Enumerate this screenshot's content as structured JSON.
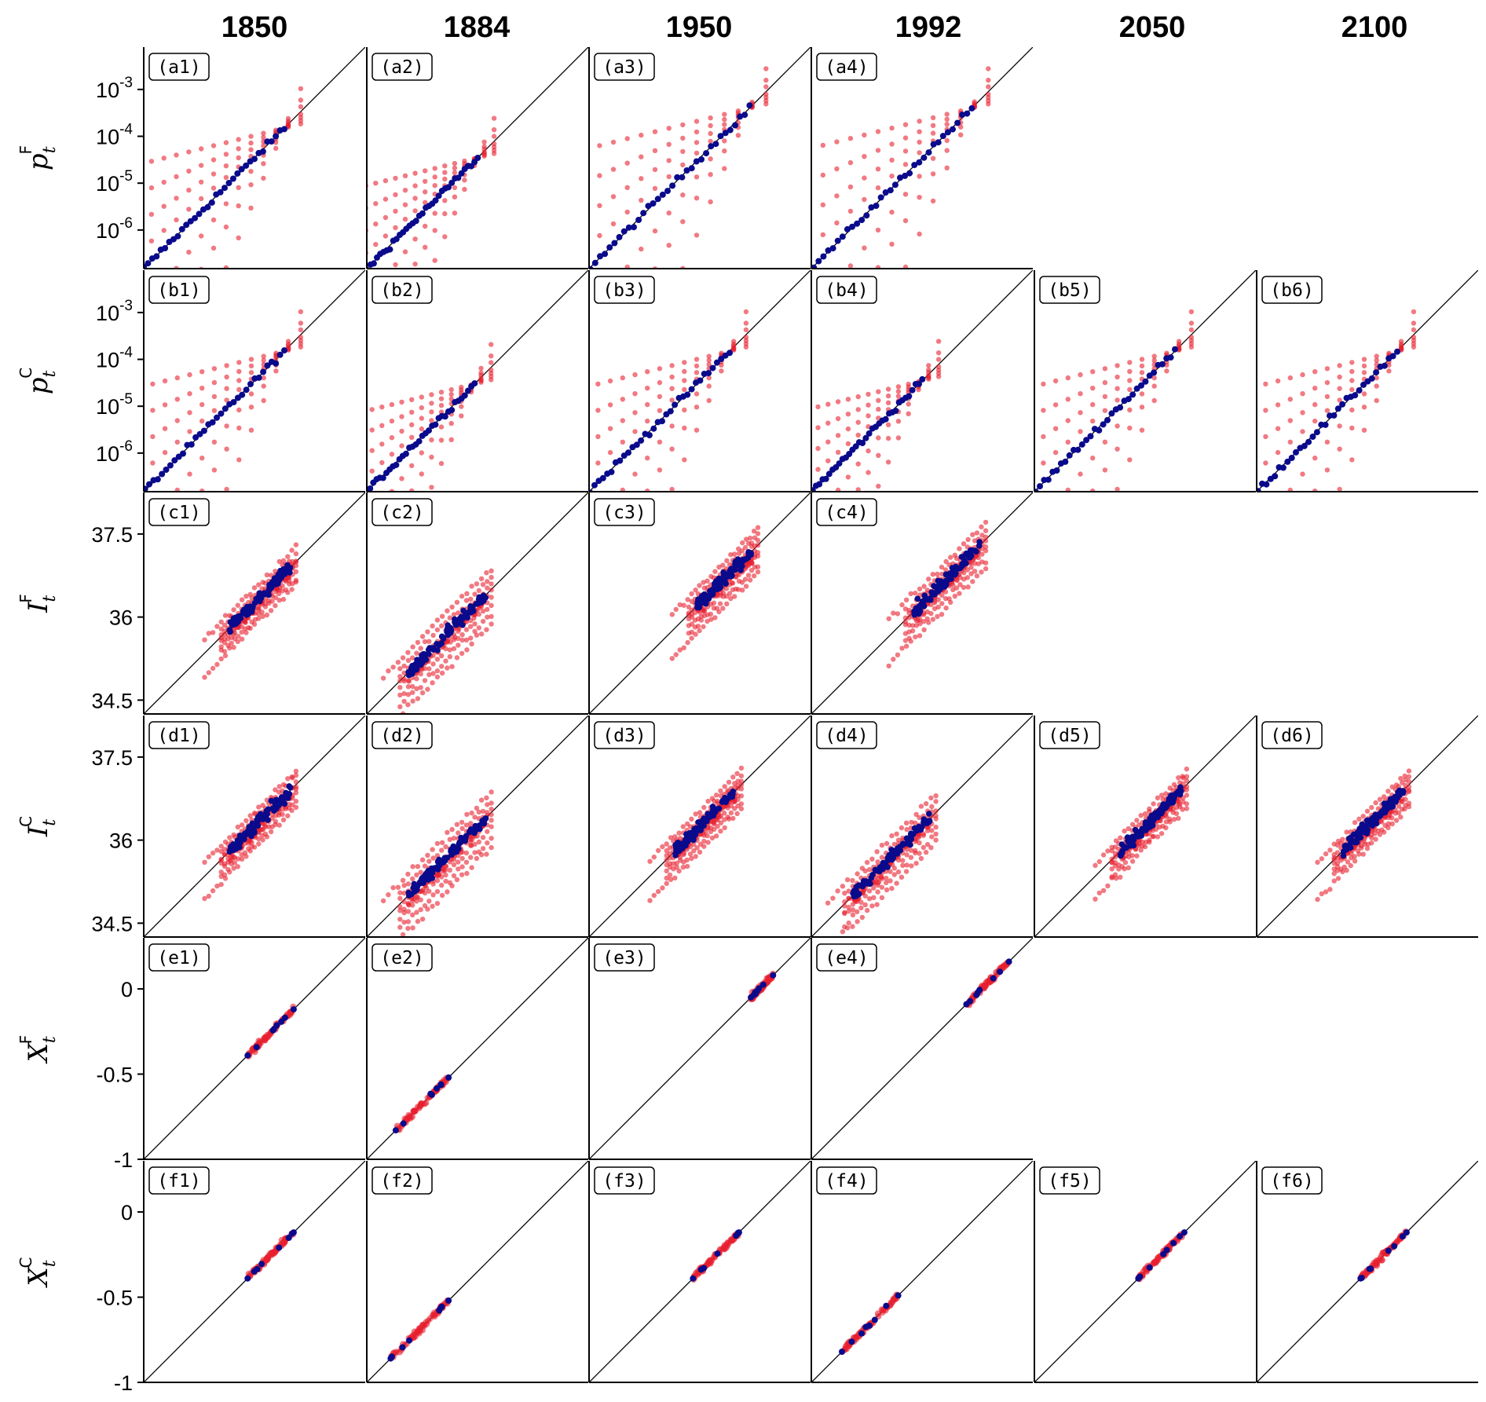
{
  "column_titles": [
    "1850",
    "1884",
    "1950",
    "1992",
    "2050",
    "2100"
  ],
  "rows": [
    {
      "id": "a",
      "ylabel": {
        "base": "p",
        "sub": "t",
        "sup": "F"
      }
    },
    {
      "id": "b",
      "ylabel": {
        "base": "p",
        "sub": "t",
        "sup": "C"
      }
    },
    {
      "id": "c",
      "ylabel": {
        "base": "I",
        "sub": "t",
        "sup": "F"
      }
    },
    {
      "id": "d",
      "ylabel": {
        "base": "I",
        "sub": "t",
        "sup": "C"
      }
    },
    {
      "id": "e",
      "ylabel": {
        "base": "X",
        "sub": "t",
        "sup": "F"
      }
    },
    {
      "id": "f",
      "ylabel": {
        "base": "X",
        "sub": "t",
        "sup": "C"
      }
    }
  ],
  "chart_data": {
    "type": "scatter",
    "layout": "6x6 small multiples; diagonal reference line y = x in each panel",
    "series_colors": {
      "blue": "#0a0a8c",
      "red": "#e8202e"
    },
    "rows": [
      {
        "id": "a",
        "scale": "log",
        "ylim": [
          1.5e-07,
          0.008
        ],
        "yticks": [
          {
            "base": "10",
            "exp": "-3"
          },
          {
            "base": "10",
            "exp": "-4"
          },
          {
            "base": "10",
            "exp": "-5"
          },
          {
            "base": "10",
            "exp": "-6"
          }
        ],
        "ytick_values": [
          0.001,
          0.0001,
          1e-05,
          1e-06
        ]
      },
      {
        "id": "b",
        "scale": "log",
        "ylim": [
          1.5e-07,
          0.008
        ],
        "yticks": [
          {
            "base": "10",
            "exp": "-3"
          },
          {
            "base": "10",
            "exp": "-4"
          },
          {
            "base": "10",
            "exp": "-5"
          },
          {
            "base": "10",
            "exp": "-6"
          }
        ],
        "ytick_values": [
          0.001,
          0.0001,
          1e-05,
          1e-06
        ]
      },
      {
        "id": "c",
        "scale": "linear",
        "ylim": [
          34.25,
          38.25
        ],
        "yticks": [
          "37.5",
          "36",
          "34.5"
        ],
        "ytick_values": [
          37.5,
          36,
          34.5
        ]
      },
      {
        "id": "d",
        "scale": "linear",
        "ylim": [
          34.25,
          38.25
        ],
        "yticks": [
          "37.5",
          "36",
          "34.5"
        ],
        "ytick_values": [
          37.5,
          36,
          34.5
        ]
      },
      {
        "id": "e",
        "scale": "linear",
        "ylim": [
          -1,
          0.3
        ],
        "yticks": [
          "0",
          "-0.5",
          "-1"
        ],
        "ytick_values": [
          0,
          -0.5,
          -1
        ]
      },
      {
        "id": "f",
        "scale": "linear",
        "ylim": [
          -1,
          0.3
        ],
        "yticks": [
          "0",
          "-0.5",
          "-1"
        ],
        "ytick_values": [
          0,
          -0.5,
          -1
        ]
      }
    ],
    "panels": [
      {
        "tag": "(a1)",
        "row": 0,
        "col": 0,
        "kind": "fan",
        "x0": 1.5e-07,
        "x1": 0.00015
      },
      {
        "tag": "(a2)",
        "row": 0,
        "col": 1,
        "kind": "fan",
        "x0": 1.8e-07,
        "x1": 3.5e-05
      },
      {
        "tag": "(a3)",
        "row": 0,
        "col": 2,
        "kind": "fan",
        "x0": 1.6e-07,
        "x1": 0.0004
      },
      {
        "tag": "(a4)",
        "row": 0,
        "col": 3,
        "kind": "fan",
        "x0": 1.7e-07,
        "x1": 0.0004
      },
      {
        "tag": "(b1)",
        "row": 1,
        "col": 0,
        "kind": "fan",
        "x0": 1.6e-07,
        "x1": 0.00015
      },
      {
        "tag": "(b2)",
        "row": 1,
        "col": 1,
        "kind": "fan",
        "x0": 1.5e-07,
        "x1": 3e-05
      },
      {
        "tag": "(b3)",
        "row": 1,
        "col": 2,
        "kind": "fan",
        "x0": 1.6e-07,
        "x1": 0.00015
      },
      {
        "tag": "(b4)",
        "row": 1,
        "col": 3,
        "kind": "fan",
        "x0": 1.6e-07,
        "x1": 3.5e-05
      },
      {
        "tag": "(b5)",
        "row": 1,
        "col": 4,
        "kind": "fan",
        "x0": 1.6e-07,
        "x1": 0.00015
      },
      {
        "tag": "(b6)",
        "row": 1,
        "col": 5,
        "kind": "fan",
        "x0": 1.6e-07,
        "x1": 0.00015
      },
      {
        "tag": "(c1)",
        "row": 2,
        "col": 0,
        "kind": "band",
        "x0": 35.8,
        "x1": 36.9,
        "spread": 0.45
      },
      {
        "tag": "(c2)",
        "row": 2,
        "col": 1,
        "kind": "band",
        "x0": 35.0,
        "x1": 36.4,
        "spread": 0.7
      },
      {
        "tag": "(c3)",
        "row": 2,
        "col": 2,
        "kind": "band",
        "x0": 36.2,
        "x1": 37.2,
        "spread": 0.55
      },
      {
        "tag": "(c4)",
        "row": 2,
        "col": 3,
        "kind": "band",
        "x0": 36.1,
        "x1": 37.3,
        "spread": 0.55
      },
      {
        "tag": "(d1)",
        "row": 3,
        "col": 0,
        "kind": "band",
        "x0": 35.8,
        "x1": 36.9,
        "spread": 0.45
      },
      {
        "tag": "(d2)",
        "row": 3,
        "col": 1,
        "kind": "band",
        "x0": 35.0,
        "x1": 36.4,
        "spread": 0.7
      },
      {
        "tag": "(d3)",
        "row": 3,
        "col": 2,
        "kind": "band",
        "x0": 35.8,
        "x1": 36.9,
        "spread": 0.5
      },
      {
        "tag": "(d4)",
        "row": 3,
        "col": 3,
        "kind": "band",
        "x0": 35.0,
        "x1": 36.4,
        "spread": 0.6
      },
      {
        "tag": "(d5)",
        "row": 3,
        "col": 4,
        "kind": "band",
        "x0": 35.8,
        "x1": 36.9,
        "spread": 0.45
      },
      {
        "tag": "(d6)",
        "row": 3,
        "col": 5,
        "kind": "band",
        "x0": 35.8,
        "x1": 36.9,
        "spread": 0.45
      },
      {
        "tag": "(e1)",
        "row": 4,
        "col": 0,
        "kind": "line",
        "x0": -0.39,
        "x1": -0.12
      },
      {
        "tag": "(e2)",
        "row": 4,
        "col": 1,
        "kind": "line",
        "x0": -0.83,
        "x1": -0.52
      },
      {
        "tag": "(e3)",
        "row": 4,
        "col": 2,
        "kind": "line",
        "x0": -0.05,
        "x1": 0.08
      },
      {
        "tag": "(e4)",
        "row": 4,
        "col": 3,
        "kind": "line",
        "x0": -0.09,
        "x1": 0.16
      },
      {
        "tag": "(f1)",
        "row": 5,
        "col": 0,
        "kind": "line",
        "x0": -0.39,
        "x1": -0.12
      },
      {
        "tag": "(f2)",
        "row": 5,
        "col": 1,
        "kind": "line",
        "x0": -0.86,
        "x1": -0.52
      },
      {
        "tag": "(f3)",
        "row": 5,
        "col": 2,
        "kind": "line",
        "x0": -0.39,
        "x1": -0.12
      },
      {
        "tag": "(f4)",
        "row": 5,
        "col": 3,
        "kind": "line",
        "x0": -0.82,
        "x1": -0.49
      },
      {
        "tag": "(f5)",
        "row": 5,
        "col": 4,
        "kind": "line",
        "x0": -0.39,
        "x1": -0.12
      },
      {
        "tag": "(f6)",
        "row": 5,
        "col": 5,
        "kind": "line",
        "x0": -0.39,
        "x1": -0.12
      }
    ]
  }
}
